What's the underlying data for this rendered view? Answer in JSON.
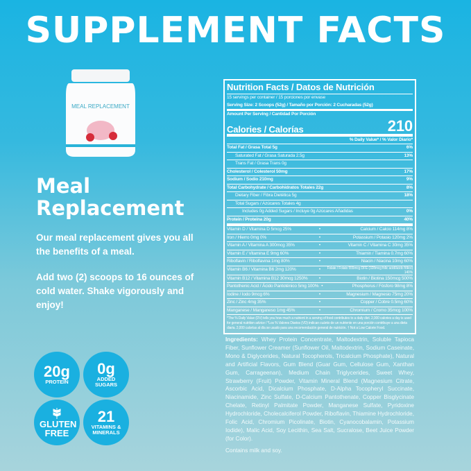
{
  "title": "SUPPLEMENT FACTS",
  "product": {
    "jar_label": "MEAL REPLACEMENT",
    "heading": "Meal Replacement",
    "desc1": "Our meal replacement gives you all the benefits of a meal.",
    "desc2": "Add two (2) scoops to 16 ounces of cold water. Shake vigorously and enjoy!"
  },
  "badges": [
    {
      "big": "20g",
      "small": "PROTEIN"
    },
    {
      "big": "0g",
      "small": "ADDED SUGARS"
    },
    {
      "big": "GLUTEN FREE",
      "icon": "wheat-icon"
    },
    {
      "big": "21",
      "small": "VITAMINS & MINERALS"
    }
  ],
  "label": {
    "title": "Nutrition Facts / Datos de Nutrición",
    "servings": "15 servings per container / 15 porciones por envase",
    "serving_size": "Serving Size: 2 Scoops (52g) / Tamaño por Porción: 2 Cucharadas (52g)",
    "amount": "Amount Per Serving / Cantidad Por Porción",
    "calories_label": "Calories / Calorías",
    "calories": "210",
    "dv_header": "% Daily Value* / % Valor Diario*",
    "rows": [
      {
        "name": "Total Fat / Grasa Total 5g",
        "dv": "6%",
        "indent": 0,
        "bold": true
      },
      {
        "name": "Saturated Fat / Grasa Saturada 2.5g",
        "dv": "13%",
        "indent": 1
      },
      {
        "name": "Trans Fat / Grasa Trans 0g",
        "dv": "",
        "indent": 1
      },
      {
        "name": "Cholesterol / Colesterol 50mg",
        "dv": "17%",
        "indent": 0,
        "bold": true
      },
      {
        "name": "Sodium / Sodio 210mg",
        "dv": "9%",
        "indent": 0,
        "bold": true
      },
      {
        "name": "Total Carbohydrate / Carbohidratos Totales 22g",
        "dv": "8%",
        "indent": 0,
        "bold": true
      },
      {
        "name": "Dietary Fiber / Fibra Dietética 5g",
        "dv": "18%",
        "indent": 1
      },
      {
        "name": "Total Sugars / Azúcares Totales 4g",
        "dv": "",
        "indent": 1
      },
      {
        "name": "Includes 0g Added Sugars / Incluye 0g Azúcares Añadidas",
        "dv": "0%",
        "indent": 2
      },
      {
        "name": "Protein / Proteína 20g",
        "dv": "40%",
        "indent": 0,
        "bold": true
      }
    ],
    "vitamins": [
      [
        "Vitamin D / Vitamina D 5mcg  25%",
        "Calcium / Calcio 114mg 8%"
      ],
      [
        "Iron / Hierro  0mg  0%",
        "Potassium / Potasio 120mg 2%"
      ],
      [
        "Vitamin A / Vitamina A 300mcg  35%",
        "Vitamin C / Vitamina C 30mg 35%"
      ],
      [
        "Vitamin E / Vitamina E 9mg  60%",
        "Thiamin / Tiamina 0.7mg 60%"
      ],
      [
        "Riboflavin / Riboflavina  1mg  80%",
        "Niacin / Niacina 10mg 60%"
      ],
      [
        "Vitamin B6 / Vitamina B6  2mg 120%",
        "Folate / Folato 555mcg DFE (328mcg folic acid/ácido fólico) 140%"
      ],
      [
        "Vitamin B12 / Vitamina B12  30mcg 1250%",
        "Biotin / Biotina 150mcg 500%"
      ],
      [
        "Pantothenic Acid / Ácido Pantoténico 5mg 100%",
        "Phosphorus / Fósforo 98mg 8%"
      ],
      [
        "Iodine / Iodo  9mcg  6%",
        "Magnesium / Magnesio 75mg 20%"
      ],
      [
        "Zinc / Zinc  4mg  35%",
        "Copper / Cobre 0.5mg 60%"
      ],
      [
        "Manganese / Manganeso  1mg  45%",
        "Chromium / Cromo 35mcg 100%"
      ]
    ],
    "footnote": "*The % Daily Value (DV) tells you how much a nutrient in a serving of food contributes to a daily diet. 2,000 calories a day is used for general nutrition advice / *Los % Valores Diarios (VD) indican cuánto de un nutriente en una porción contribuye a una dieta diaria. 2,000 calorías al día se usado para una recomendación general de nutrición. † Not a Low Calorie Food."
  },
  "ingredients_label": "Ingredients:",
  "ingredients": "Whey Protein Concentrate, Maltodextrin, Soluble Tapioca Fiber, Sunflower Creamer (Sunflower Oil, Maltodextrin, Sodium Caseinate, Mono & Diglycerides, Natural Tocopherols, Tricalcium Phosphate), Natural and Artificial Flavors, Gum Blend (Guar Gum, Cellulose Gum, Xanthan Gum, Carrageenan), Medium Chain Triglycerides, Sweet Whey, Strawberry (Fruit) Powder, Vitamin Mineral Blend (Magnesium Citrate, Ascorbic Acid, Dicalcium Phosphate, D-Alpha Tocopheryl Succinate, Niacinamide, Zinc Sulfate, D-Calcium Pantothenate, Copper Bisglycinate Chelate, Retinyl Palmitate Powder, Manganese Sulfate, Pyridoxine Hydrochloride, Cholecalciferol Powder, Riboflavin, Thiamine Hydrochloride, Folic Acid, Chromium Picolinate, Biotin, Cyanocobalamin, Potassium Iodide), Malic Acid, Soy Lecithin, Sea Salt, Sucralose, Beet Juice Powder (for Color).",
  "contains": "Contains milk and soy."
}
